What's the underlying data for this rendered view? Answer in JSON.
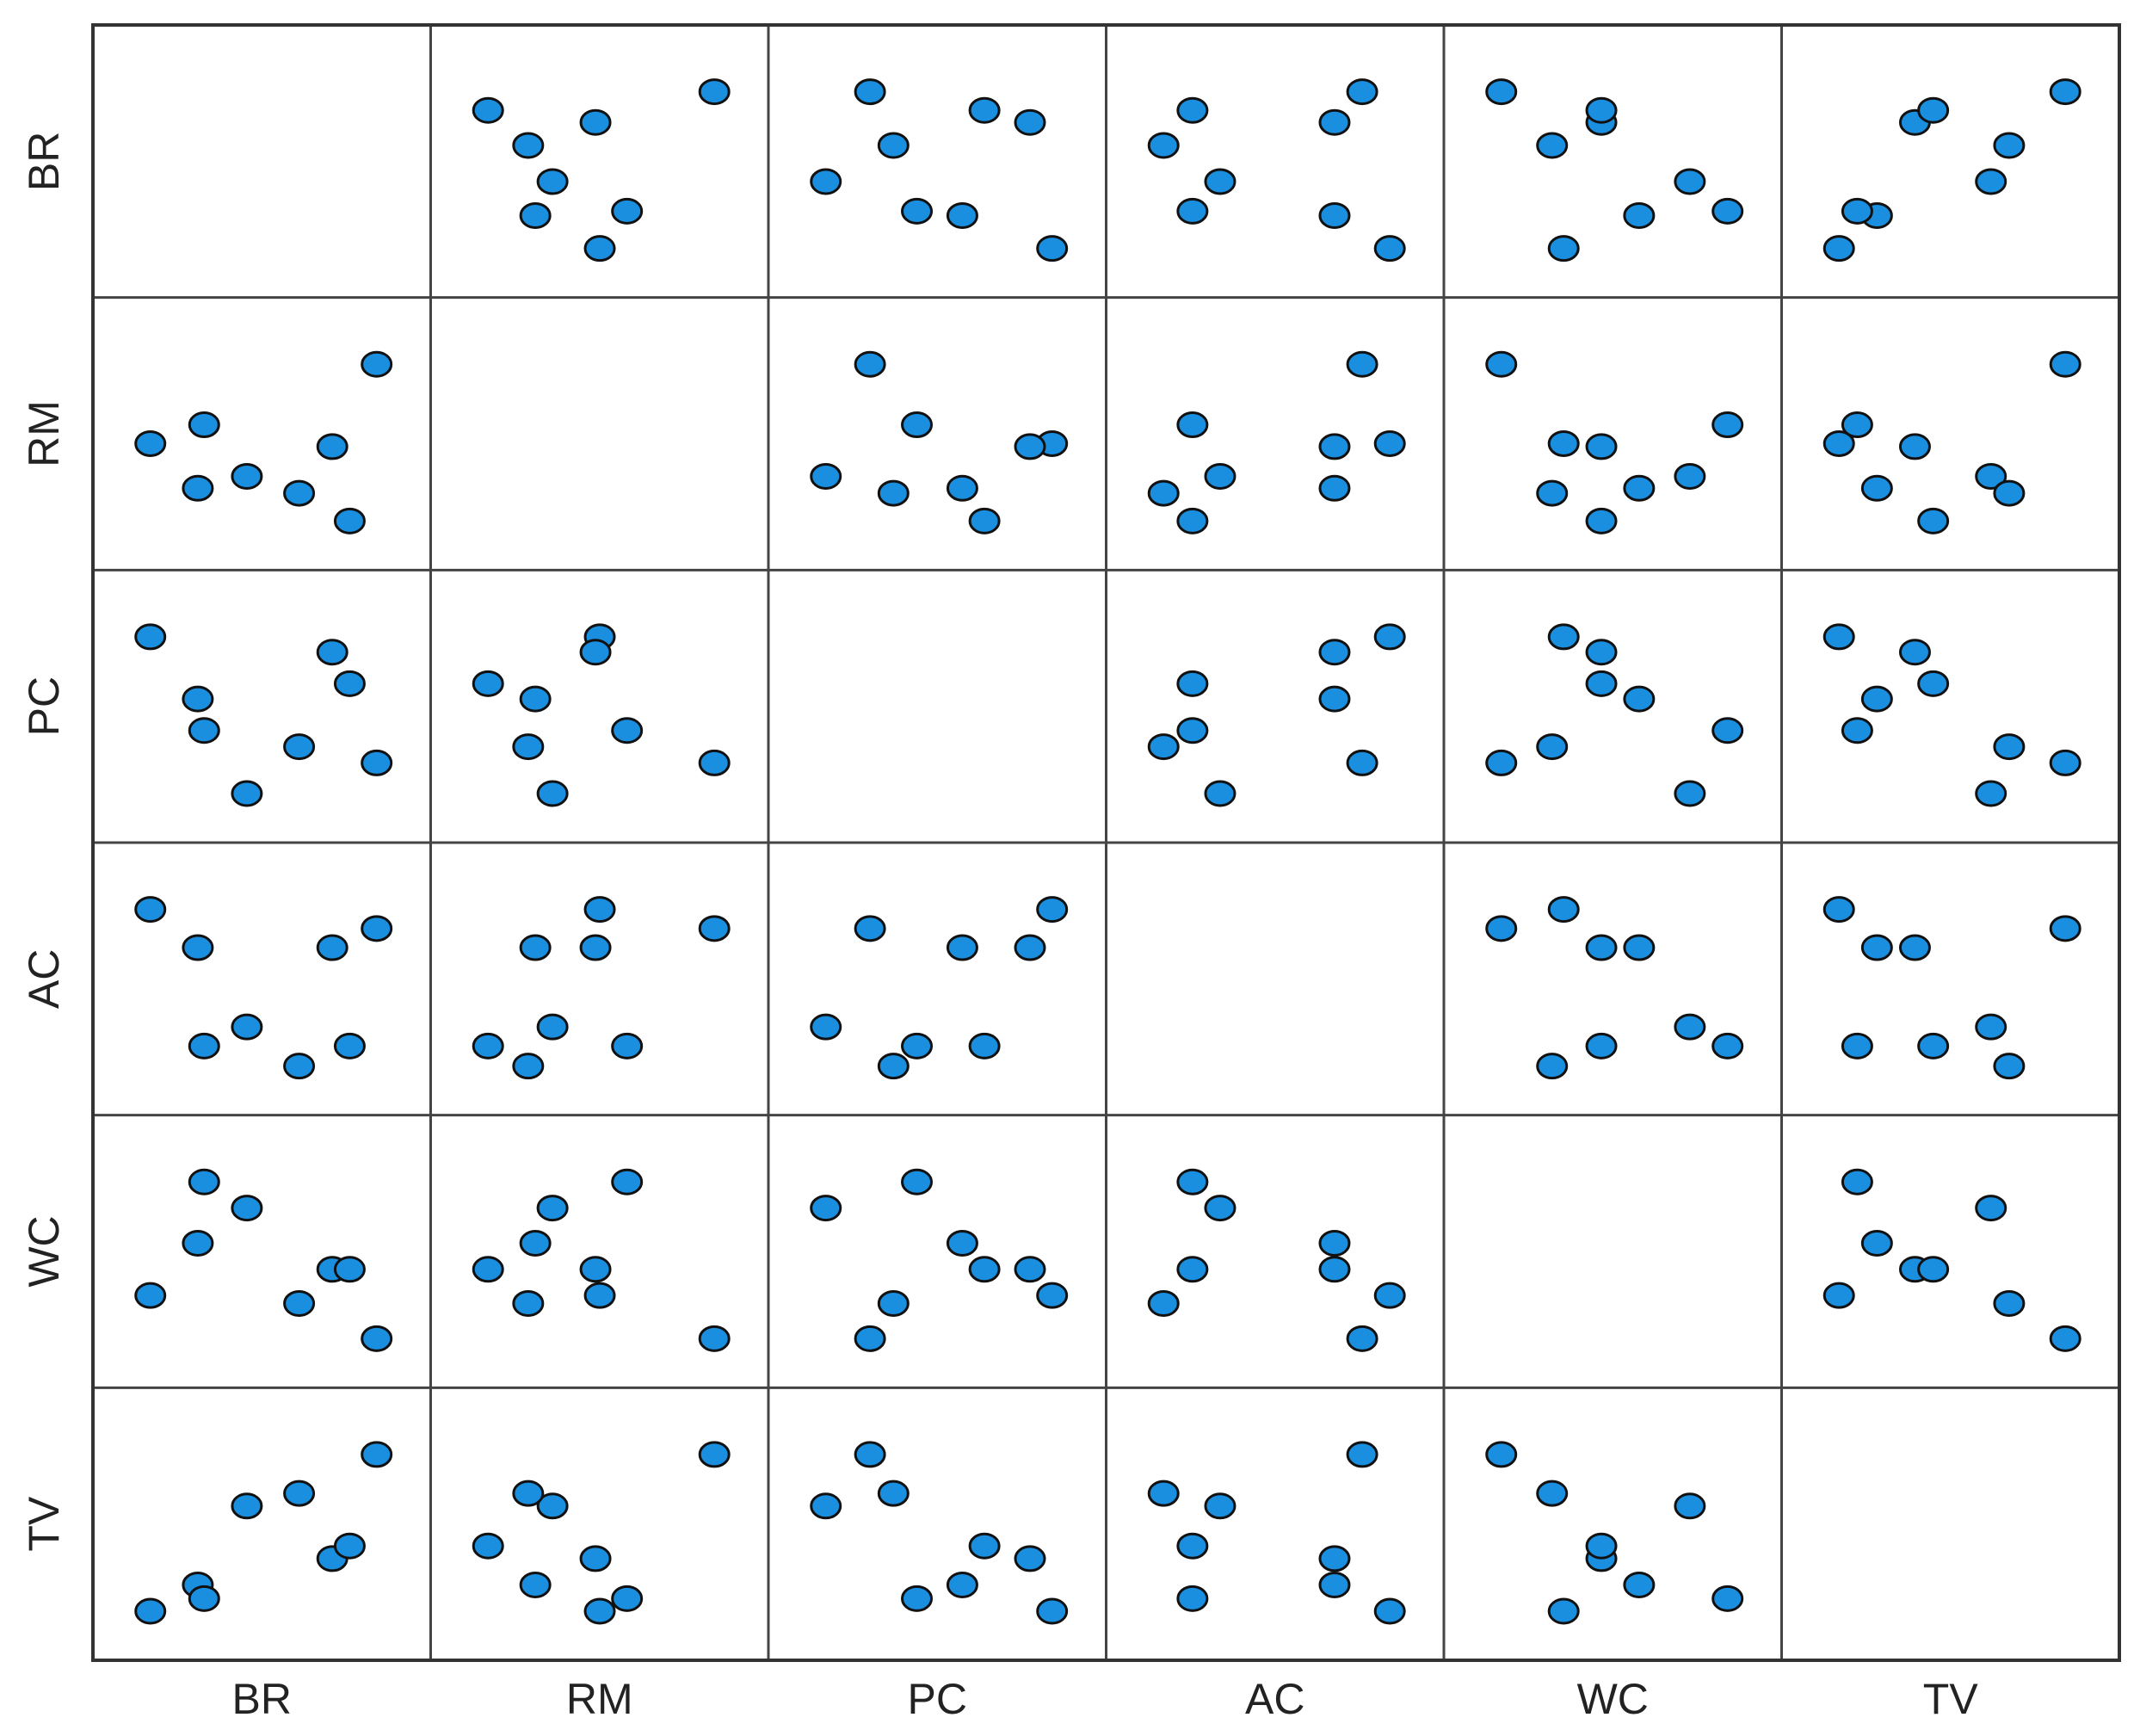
{
  "chart_data": {
    "type": "scatter_matrix",
    "color": "#1a8fe0",
    "variables": [
      {
        "name": "BR",
        "values": [
          43,
          73,
          77,
          104,
          137,
          158,
          169,
          186
        ]
      },
      {
        "name": "RM",
        "values": [
          119,
          74,
          138,
          86,
          69,
          116,
          41,
          199
        ]
      },
      {
        "name": "PC",
        "values": [
          211,
          142,
          107,
          37,
          89,
          194,
          159,
          71
        ]
      },
      {
        "name": "AC",
        "values": [
          209,
          167,
          59,
          80,
          37,
          167,
          59,
          188
        ]
      },
      {
        "name": "WC",
        "values": [
          80,
          132,
          193,
          167,
          72,
          106,
          106,
          37
        ]
      },
      {
        "name": "TV",
        "values": [
          48,
          73,
          60,
          148,
          160,
          98,
          110,
          197
        ]
      }
    ]
  }
}
